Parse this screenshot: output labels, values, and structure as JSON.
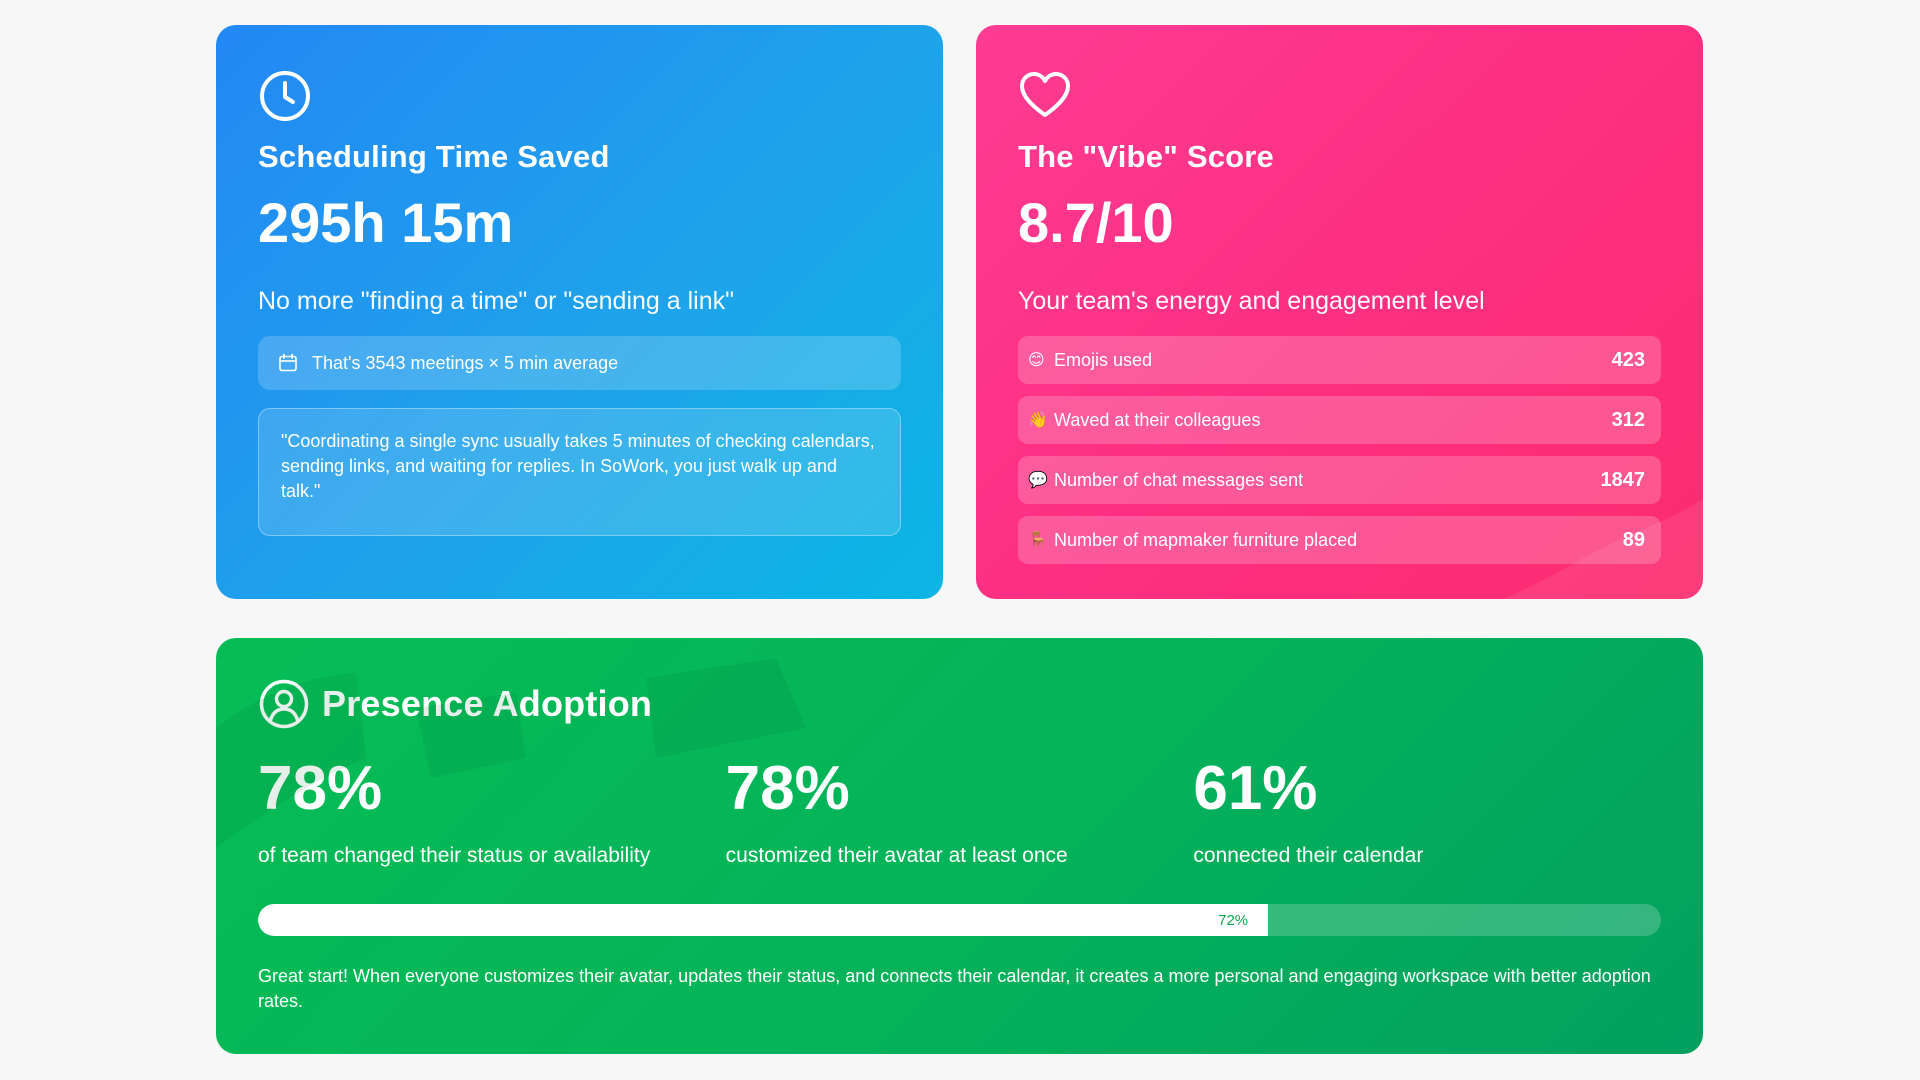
{
  "time_card": {
    "icon": "clock-icon",
    "title": "Scheduling Time Saved",
    "value": "295h 15m",
    "subtitle": "No more \"finding a time\" or \"sending a link\"",
    "info_icon": "calendar-icon",
    "info": "That's 3543 meetings × 5 min average",
    "quote": "\"Coordinating a single sync usually takes 5 minutes of checking calendars, sending links, and waiting for replies. In SoWork, you just walk up and talk.\""
  },
  "vibe_card": {
    "icon": "heart-icon",
    "title": "The \"Vibe\" Score",
    "value": "8.7/10",
    "subtitle": "Your team's energy and engagement level",
    "stats": [
      {
        "emoji": "😊",
        "label": "Emojis used",
        "value": "423"
      },
      {
        "emoji": "👋",
        "label": "Waved at their colleagues",
        "value": "312"
      },
      {
        "emoji": "💬",
        "label": "Number of chat messages sent",
        "value": "1847"
      },
      {
        "emoji": "🪑",
        "label": "Number of mapmaker furniture placed",
        "value": "89"
      }
    ]
  },
  "presence_card": {
    "icon": "user-circle-icon",
    "title": "Presence Adoption",
    "metrics": [
      {
        "value": "78%",
        "label": "of team changed their status or availability"
      },
      {
        "value": "78%",
        "label": "customized their avatar at least once"
      },
      {
        "value": "61%",
        "label": "connected their calendar"
      }
    ],
    "progress": {
      "percent": 72,
      "label": "72%"
    },
    "footer": "Great start! When everyone customizes their avatar, updates their status, and connects their calendar, it creates a more personal and engaging workspace with better adoption rates."
  },
  "colors": {
    "blue": "#2388f5",
    "pink": "#fd3c92",
    "green": "#06bd55",
    "background": "#f7f7f7"
  }
}
